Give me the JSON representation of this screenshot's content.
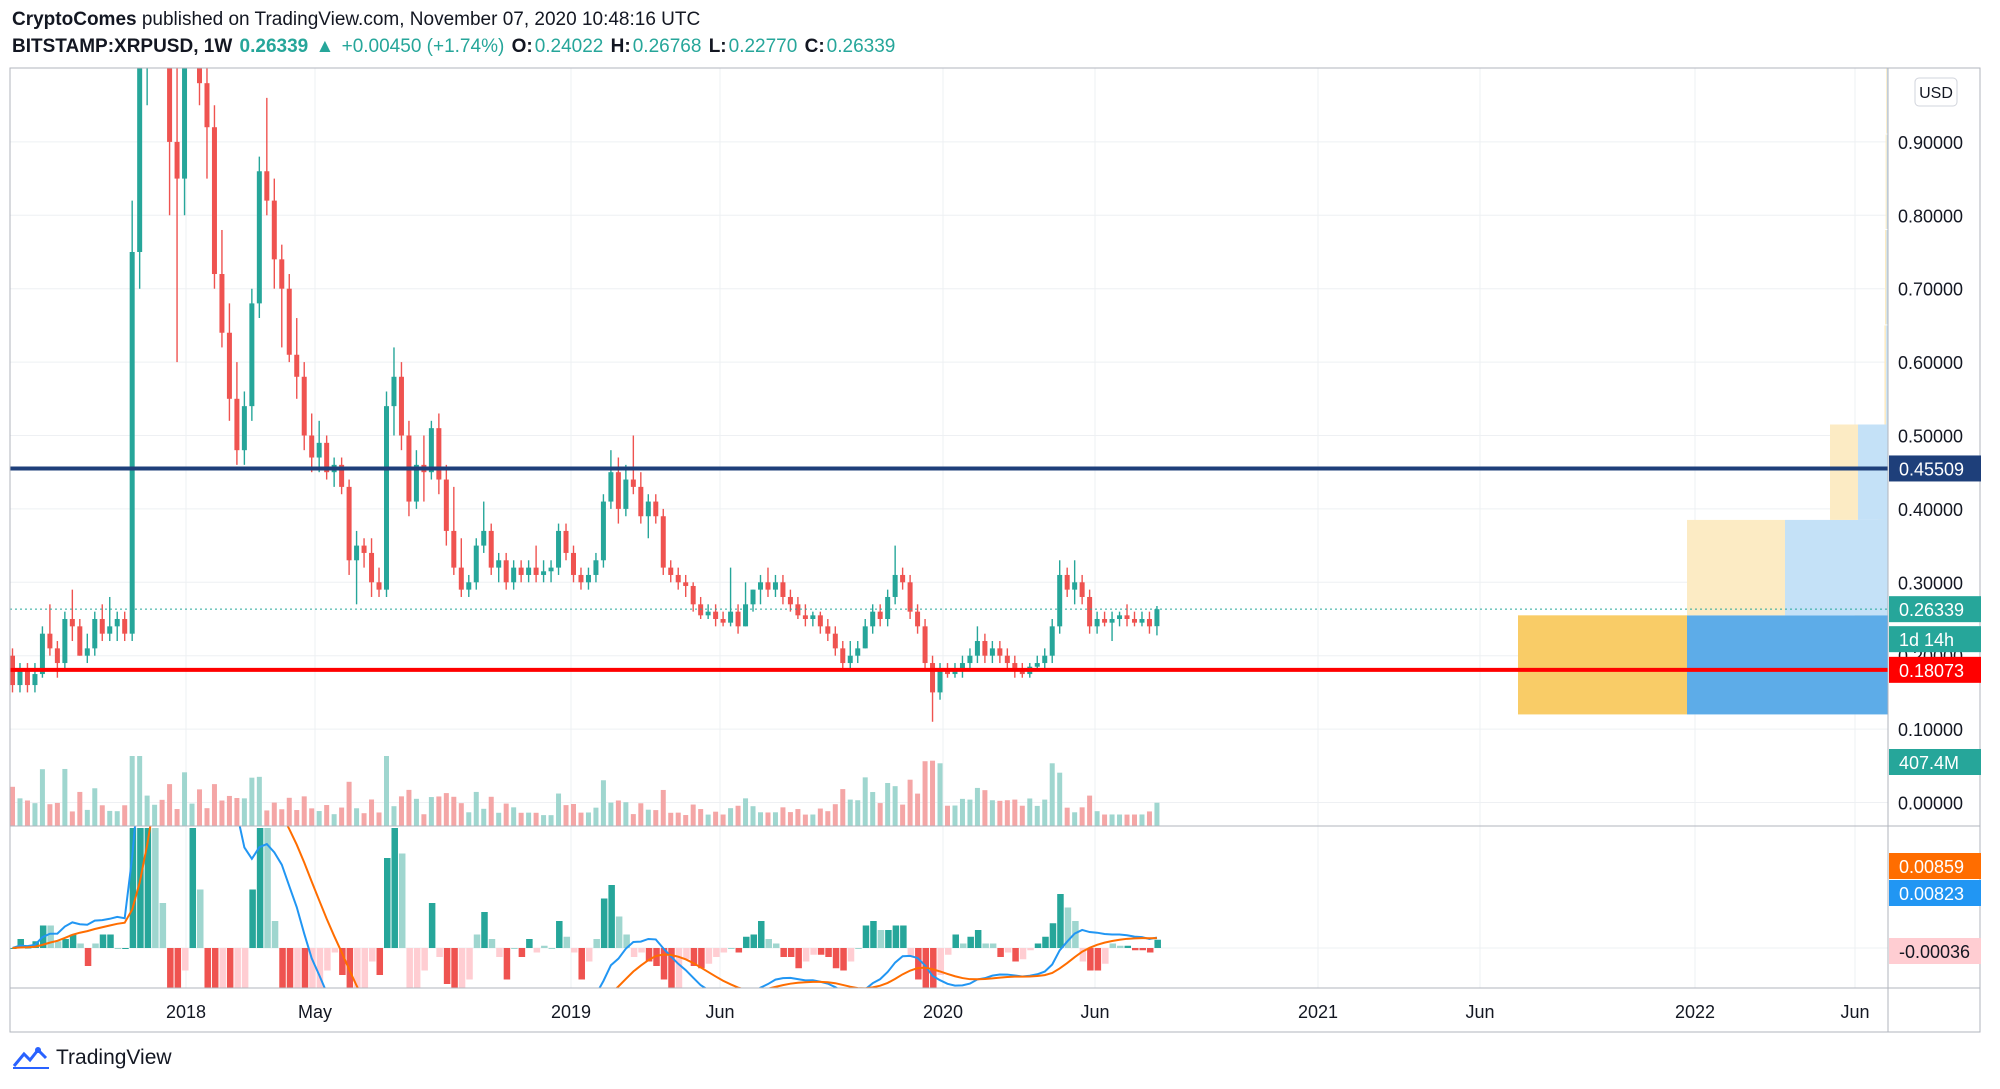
{
  "header": {
    "publisher": "CryptoComes",
    "published_text": "published on TradingView.com, November 07, 2020 10:48:16 UTC",
    "symbol": "BITSTAMP:XRPUSD, 1W",
    "last": "0.26339",
    "change": "+0.00450 (+1.74%)",
    "o_label": "O:",
    "o": "0.24022",
    "h_label": "H:",
    "h": "0.26768",
    "l_label": "L:",
    "l": "0.22770",
    "c_label": "C:",
    "c": "0.26339"
  },
  "footer": {
    "brand": "TradingView"
  },
  "colors": {
    "up": "#26a69a",
    "down": "#ef5350",
    "up_volume": "#9fd6cf",
    "down_volume": "#f4a6a6",
    "resistance": "#1e3f7a",
    "support": "#ff0000",
    "macd_line": "#2196f3",
    "signal_line": "#ff6d00",
    "box_gold": "#f9cc67",
    "box_blue": "#5dace8",
    "box_gold_light": "#fcebc4",
    "box_blue_light": "#c4e1f7"
  },
  "chart_data": {
    "type": "candlestick",
    "interval": "1W",
    "currency": "USD",
    "price_range": [
      -0.02,
      1.0
    ],
    "price_ticks": [
      "0.00000",
      "0.10000",
      "0.20000",
      "0.30000",
      "0.40000",
      "0.50000",
      "0.60000",
      "0.70000",
      "0.80000",
      "0.90000"
    ],
    "time_labels": [
      "2018",
      "May",
      "2019",
      "Jun",
      "2020",
      "Jun",
      "2021",
      "Jun",
      "2022",
      "Jun"
    ],
    "last_price": "0.26339",
    "countdown": "1d 14h",
    "volume_last": "407.4M",
    "horizontal_lines": [
      {
        "price": 0.45509,
        "label": "0.45509",
        "role": "resistance"
      },
      {
        "price": 0.18073,
        "label": "0.18073",
        "role": "support"
      }
    ],
    "candles": [
      [
        0.2,
        0.21,
        0.15,
        0.16
      ],
      [
        0.16,
        0.19,
        0.15,
        0.18
      ],
      [
        0.18,
        0.19,
        0.15,
        0.16
      ],
      [
        0.16,
        0.19,
        0.15,
        0.175
      ],
      [
        0.175,
        0.24,
        0.17,
        0.23
      ],
      [
        0.23,
        0.27,
        0.2,
        0.21
      ],
      [
        0.21,
        0.22,
        0.17,
        0.19
      ],
      [
        0.19,
        0.26,
        0.18,
        0.25
      ],
      [
        0.25,
        0.29,
        0.22,
        0.24
      ],
      [
        0.24,
        0.25,
        0.2,
        0.2
      ],
      [
        0.2,
        0.23,
        0.19,
        0.21
      ],
      [
        0.21,
        0.26,
        0.2,
        0.25
      ],
      [
        0.25,
        0.27,
        0.22,
        0.23
      ],
      [
        0.23,
        0.28,
        0.22,
        0.24
      ],
      [
        0.24,
        0.26,
        0.22,
        0.25
      ],
      [
        0.25,
        0.26,
        0.22,
        0.23
      ],
      [
        0.23,
        0.82,
        0.22,
        0.75
      ],
      [
        0.75,
        1.1,
        0.7,
        1.05
      ],
      [
        1.05,
        1.35,
        0.95,
        1.2
      ],
      [
        1.2,
        1.4,
        1.0,
        1.3
      ],
      [
        1.3,
        1.45,
        1.1,
        1.15
      ],
      [
        1.15,
        1.25,
        0.8,
        0.9
      ],
      [
        0.9,
        1.0,
        0.6,
        0.85
      ],
      [
        0.85,
        1.2,
        0.8,
        1.1
      ],
      [
        1.1,
        1.3,
        1.0,
        1.2
      ],
      [
        1.2,
        1.3,
        0.95,
        0.98
      ],
      [
        0.98,
        1.05,
        0.85,
        0.92
      ],
      [
        0.92,
        0.95,
        0.7,
        0.72
      ],
      [
        0.72,
        0.78,
        0.62,
        0.64
      ],
      [
        0.64,
        0.68,
        0.52,
        0.55
      ],
      [
        0.55,
        0.6,
        0.46,
        0.48
      ],
      [
        0.48,
        0.56,
        0.46,
        0.54
      ],
      [
        0.54,
        0.7,
        0.52,
        0.68
      ],
      [
        0.68,
        0.88,
        0.66,
        0.86
      ],
      [
        0.86,
        0.96,
        0.8,
        0.82
      ],
      [
        0.82,
        0.85,
        0.7,
        0.74
      ],
      [
        0.74,
        0.76,
        0.62,
        0.7
      ],
      [
        0.7,
        0.72,
        0.6,
        0.61
      ],
      [
        0.61,
        0.66,
        0.55,
        0.58
      ],
      [
        0.58,
        0.6,
        0.48,
        0.5
      ],
      [
        0.5,
        0.53,
        0.45,
        0.47
      ],
      [
        0.47,
        0.52,
        0.45,
        0.49
      ],
      [
        0.49,
        0.5,
        0.44,
        0.45
      ],
      [
        0.45,
        0.47,
        0.43,
        0.46
      ],
      [
        0.46,
        0.47,
        0.42,
        0.43
      ],
      [
        0.43,
        0.44,
        0.31,
        0.33
      ],
      [
        0.33,
        0.37,
        0.27,
        0.35
      ],
      [
        0.35,
        0.36,
        0.32,
        0.34
      ],
      [
        0.34,
        0.36,
        0.28,
        0.3
      ],
      [
        0.3,
        0.32,
        0.28,
        0.29
      ],
      [
        0.29,
        0.56,
        0.28,
        0.54
      ],
      [
        0.54,
        0.62,
        0.5,
        0.58
      ],
      [
        0.58,
        0.6,
        0.48,
        0.5
      ],
      [
        0.5,
        0.52,
        0.39,
        0.41
      ],
      [
        0.41,
        0.48,
        0.4,
        0.46
      ],
      [
        0.46,
        0.5,
        0.41,
        0.45
      ],
      [
        0.45,
        0.52,
        0.44,
        0.51
      ],
      [
        0.51,
        0.53,
        0.42,
        0.44
      ],
      [
        0.44,
        0.46,
        0.35,
        0.37
      ],
      [
        0.37,
        0.43,
        0.31,
        0.32
      ],
      [
        0.32,
        0.36,
        0.28,
        0.29
      ],
      [
        0.29,
        0.31,
        0.28,
        0.3
      ],
      [
        0.3,
        0.36,
        0.29,
        0.35
      ],
      [
        0.35,
        0.41,
        0.34,
        0.37
      ],
      [
        0.37,
        0.38,
        0.31,
        0.32
      ],
      [
        0.32,
        0.34,
        0.3,
        0.33
      ],
      [
        0.33,
        0.34,
        0.29,
        0.3
      ],
      [
        0.3,
        0.33,
        0.29,
        0.32
      ],
      [
        0.32,
        0.33,
        0.3,
        0.31
      ],
      [
        0.31,
        0.33,
        0.3,
        0.32
      ],
      [
        0.32,
        0.35,
        0.3,
        0.31
      ],
      [
        0.31,
        0.33,
        0.3,
        0.315
      ],
      [
        0.315,
        0.33,
        0.3,
        0.32
      ],
      [
        0.32,
        0.38,
        0.31,
        0.37
      ],
      [
        0.37,
        0.38,
        0.33,
        0.34
      ],
      [
        0.34,
        0.35,
        0.3,
        0.31
      ],
      [
        0.31,
        0.32,
        0.29,
        0.3
      ],
      [
        0.3,
        0.32,
        0.29,
        0.31
      ],
      [
        0.31,
        0.34,
        0.3,
        0.33
      ],
      [
        0.33,
        0.42,
        0.32,
        0.41
      ],
      [
        0.41,
        0.48,
        0.4,
        0.45
      ],
      [
        0.45,
        0.47,
        0.38,
        0.4
      ],
      [
        0.4,
        0.46,
        0.39,
        0.44
      ],
      [
        0.44,
        0.5,
        0.42,
        0.43
      ],
      [
        0.43,
        0.45,
        0.38,
        0.39
      ],
      [
        0.39,
        0.42,
        0.36,
        0.41
      ],
      [
        0.41,
        0.42,
        0.38,
        0.39
      ],
      [
        0.39,
        0.4,
        0.31,
        0.32
      ],
      [
        0.32,
        0.33,
        0.3,
        0.31
      ],
      [
        0.31,
        0.32,
        0.29,
        0.3
      ],
      [
        0.3,
        0.31,
        0.28,
        0.295
      ],
      [
        0.295,
        0.3,
        0.26,
        0.27
      ],
      [
        0.27,
        0.28,
        0.25,
        0.255
      ],
      [
        0.255,
        0.27,
        0.25,
        0.26
      ],
      [
        0.26,
        0.27,
        0.24,
        0.25
      ],
      [
        0.25,
        0.26,
        0.24,
        0.245
      ],
      [
        0.245,
        0.32,
        0.24,
        0.26
      ],
      [
        0.26,
        0.27,
        0.23,
        0.24
      ],
      [
        0.24,
        0.3,
        0.24,
        0.27
      ],
      [
        0.27,
        0.29,
        0.26,
        0.29
      ],
      [
        0.29,
        0.31,
        0.27,
        0.3
      ],
      [
        0.3,
        0.32,
        0.28,
        0.29
      ],
      [
        0.29,
        0.31,
        0.28,
        0.3
      ],
      [
        0.3,
        0.31,
        0.27,
        0.28
      ],
      [
        0.28,
        0.29,
        0.26,
        0.27
      ],
      [
        0.27,
        0.28,
        0.25,
        0.255
      ],
      [
        0.255,
        0.27,
        0.24,
        0.25
      ],
      [
        0.25,
        0.26,
        0.24,
        0.255
      ],
      [
        0.255,
        0.26,
        0.23,
        0.24
      ],
      [
        0.24,
        0.25,
        0.22,
        0.23
      ],
      [
        0.23,
        0.24,
        0.2,
        0.21
      ],
      [
        0.21,
        0.22,
        0.18,
        0.19
      ],
      [
        0.19,
        0.22,
        0.18,
        0.2
      ],
      [
        0.2,
        0.22,
        0.19,
        0.21
      ],
      [
        0.21,
        0.25,
        0.21,
        0.24
      ],
      [
        0.24,
        0.27,
        0.23,
        0.26
      ],
      [
        0.26,
        0.27,
        0.24,
        0.25
      ],
      [
        0.25,
        0.29,
        0.24,
        0.28
      ],
      [
        0.28,
        0.35,
        0.27,
        0.31
      ],
      [
        0.31,
        0.32,
        0.29,
        0.3
      ],
      [
        0.3,
        0.31,
        0.25,
        0.26
      ],
      [
        0.26,
        0.27,
        0.23,
        0.24
      ],
      [
        0.24,
        0.25,
        0.18,
        0.19
      ],
      [
        0.19,
        0.2,
        0.11,
        0.15
      ],
      [
        0.15,
        0.19,
        0.14,
        0.18
      ],
      [
        0.18,
        0.19,
        0.17,
        0.175
      ],
      [
        0.175,
        0.19,
        0.17,
        0.18
      ],
      [
        0.18,
        0.2,
        0.17,
        0.19
      ],
      [
        0.19,
        0.21,
        0.18,
        0.2
      ],
      [
        0.2,
        0.24,
        0.19,
        0.22
      ],
      [
        0.22,
        0.23,
        0.19,
        0.2
      ],
      [
        0.2,
        0.22,
        0.19,
        0.21
      ],
      [
        0.21,
        0.22,
        0.19,
        0.2
      ],
      [
        0.2,
        0.21,
        0.18,
        0.19
      ],
      [
        0.19,
        0.2,
        0.17,
        0.18
      ],
      [
        0.18,
        0.19,
        0.17,
        0.175
      ],
      [
        0.175,
        0.19,
        0.17,
        0.185
      ],
      [
        0.185,
        0.2,
        0.18,
        0.19
      ],
      [
        0.19,
        0.21,
        0.18,
        0.2
      ],
      [
        0.2,
        0.25,
        0.19,
        0.24
      ],
      [
        0.24,
        0.33,
        0.23,
        0.31
      ],
      [
        0.31,
        0.32,
        0.28,
        0.29
      ],
      [
        0.29,
        0.33,
        0.27,
        0.3
      ],
      [
        0.3,
        0.31,
        0.27,
        0.28
      ],
      [
        0.28,
        0.29,
        0.23,
        0.24
      ],
      [
        0.24,
        0.26,
        0.23,
        0.25
      ],
      [
        0.25,
        0.26,
        0.24,
        0.245
      ],
      [
        0.245,
        0.26,
        0.22,
        0.25
      ],
      [
        0.25,
        0.26,
        0.24,
        0.255
      ],
      [
        0.255,
        0.27,
        0.24,
        0.25
      ],
      [
        0.25,
        0.26,
        0.24,
        0.245
      ],
      [
        0.245,
        0.26,
        0.24,
        0.25
      ],
      [
        0.25,
        0.26,
        0.23,
        0.24
      ],
      [
        0.24022,
        0.26768,
        0.2277,
        0.26339
      ]
    ],
    "volume_profile": [
      {
        "from": 0.12,
        "to": 0.25,
        "up": 1.0,
        "down": 1.0
      },
      {
        "from": 0.25,
        "to": 0.38,
        "up": 0.55,
        "down": 0.55
      },
      {
        "from": 0.38,
        "to": 0.51,
        "up": 0.16,
        "down": 0.16
      },
      {
        "from": 0.51,
        "to": 0.65,
        "up": 0.06,
        "down": 0.06
      },
      {
        "from": 0.65,
        "to": 0.78,
        "up": 0.05,
        "down": 0.05
      },
      {
        "from": 0.78,
        "to": 0.91,
        "up": 0.04,
        "down": 0.04
      },
      {
        "from": 0.91,
        "to": 1.04,
        "up": 0.03,
        "down": 0.03
      }
    ],
    "macd": {
      "labels": {
        "signal": "0.00859",
        "macd": "0.00823",
        "histogram": "-0.00036"
      },
      "histogram_scale": [
        -1.0,
        1.3
      ]
    }
  }
}
